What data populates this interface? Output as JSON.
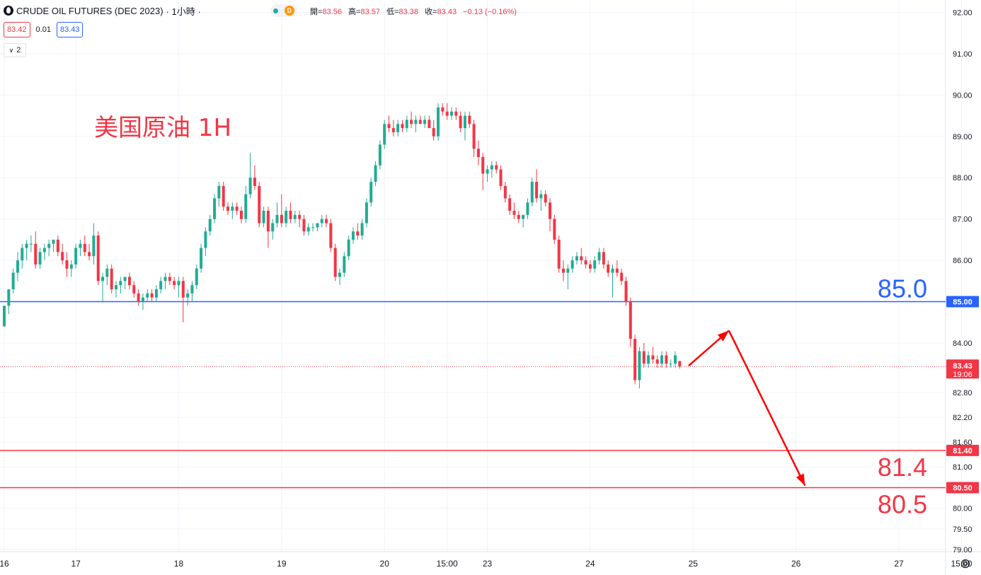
{
  "header": {
    "symbol": "CRUDE OIL FUTURES (DEC 2023)",
    "interval": "· 1小時 ·",
    "dot_icon": "status-dot-icon",
    "d_badge": "D",
    "open_label": "開=",
    "open": "83.56",
    "high_label": "高=",
    "high": "83.57",
    "low_label": "低=",
    "low": "83.38",
    "close_label": "收=",
    "close": "83.43",
    "change": "−0.13 (−0.16%)"
  },
  "quote": {
    "sell": "83.42",
    "spread": "0.01",
    "buy": "83.43"
  },
  "layers": {
    "icon": "chevron-down-icon",
    "count": "2"
  },
  "annotation": {
    "text": "美国原油 1H"
  },
  "colors": {
    "up": "#22ab94",
    "down": "#f23645",
    "blue_line": "#2962ff",
    "red_line": "#f23645",
    "grid": "#f0f3fa"
  },
  "chart_data": {
    "type": "candlestick",
    "title": "",
    "xlabel": "",
    "ylabel": "",
    "ylim": [
      78.95,
      92.3
    ],
    "grid": true,
    "y_ticks": [
      "92.00",
      "91.00",
      "90.00",
      "89.00",
      "88.00",
      "87.00",
      "86.00",
      "84.00",
      "82.80",
      "82.20",
      "81.60",
      "81.00",
      "80.00",
      "79.50",
      "79.00"
    ],
    "x_ticks": [
      {
        "label": "16",
        "t": 0
      },
      {
        "label": "17",
        "t": 16
      },
      {
        "label": "18",
        "t": 39
      },
      {
        "label": "19",
        "t": 62
      },
      {
        "label": "20",
        "t": 85
      },
      {
        "label": "15:00",
        "t": 99
      },
      {
        "label": "23",
        "t": 108
      },
      {
        "label": "24",
        "t": 131
      },
      {
        "label": "25",
        "t": 154
      },
      {
        "label": "26",
        "t": 177
      },
      {
        "label": "27",
        "t": 200
      },
      {
        "label": "15:00",
        "t": 214
      }
    ],
    "candles": [
      [
        84.4,
        84.9,
        84.4,
        84.9
      ],
      [
        84.9,
        85.3,
        84.7,
        85.3
      ],
      [
        85.3,
        85.8,
        85.2,
        85.7
      ],
      [
        85.7,
        86.2,
        85.5,
        86.0
      ],
      [
        86.0,
        86.4,
        85.8,
        86.3
      ],
      [
        86.3,
        86.5,
        86.0,
        86.4
      ],
      [
        86.4,
        86.6,
        86.2,
        86.4
      ],
      [
        86.4,
        86.7,
        85.8,
        85.9
      ],
      [
        85.9,
        86.3,
        85.8,
        86.2
      ],
      [
        86.2,
        86.4,
        86.0,
        86.3
      ],
      [
        86.3,
        86.5,
        86.1,
        86.4
      ],
      [
        86.4,
        86.5,
        86.2,
        86.5
      ],
      [
        86.5,
        86.6,
        86.1,
        86.2
      ],
      [
        86.2,
        86.4,
        85.9,
        86.0
      ],
      [
        86.0,
        86.2,
        85.6,
        85.8
      ],
      [
        85.8,
        86.0,
        85.6,
        85.9
      ],
      [
        85.9,
        86.4,
        85.8,
        86.3
      ],
      [
        86.3,
        86.5,
        86.1,
        86.4
      ],
      [
        86.4,
        86.6,
        86.1,
        86.2
      ],
      [
        86.2,
        86.4,
        86.0,
        86.1
      ],
      [
        86.1,
        86.9,
        85.9,
        86.6
      ],
      [
        86.6,
        86.7,
        85.4,
        85.5
      ],
      [
        85.5,
        85.7,
        85.0,
        85.6
      ],
      [
        85.6,
        85.9,
        85.4,
        85.8
      ],
      [
        85.8,
        85.9,
        85.2,
        85.3
      ],
      [
        85.3,
        85.5,
        85.1,
        85.4
      ],
      [
        85.4,
        85.6,
        85.2,
        85.5
      ],
      [
        85.5,
        85.6,
        85.3,
        85.6
      ],
      [
        85.6,
        85.7,
        85.3,
        85.4
      ],
      [
        85.4,
        85.5,
        85.1,
        85.2
      ],
      [
        85.2,
        85.3,
        84.9,
        85.0
      ],
      [
        85.0,
        85.2,
        84.8,
        85.1
      ],
      [
        85.1,
        85.3,
        85.0,
        85.2
      ],
      [
        85.2,
        85.3,
        85.0,
        85.1
      ],
      [
        85.1,
        85.4,
        85.0,
        85.3
      ],
      [
        85.3,
        85.6,
        85.2,
        85.5
      ],
      [
        85.5,
        85.7,
        85.3,
        85.6
      ],
      [
        85.6,
        85.7,
        85.4,
        85.5
      ],
      [
        85.5,
        85.6,
        85.3,
        85.4
      ],
      [
        85.4,
        85.6,
        85.1,
        85.5
      ],
      [
        85.5,
        85.6,
        84.5,
        85.1
      ],
      [
        85.1,
        85.3,
        84.9,
        85.2
      ],
      [
        85.2,
        85.5,
        85.0,
        85.4
      ],
      [
        85.4,
        85.9,
        85.3,
        85.8
      ],
      [
        85.8,
        86.4,
        85.7,
        86.3
      ],
      [
        86.3,
        86.8,
        86.1,
        86.7
      ],
      [
        86.7,
        87.1,
        86.6,
        87.0
      ],
      [
        87.0,
        87.6,
        86.9,
        87.5
      ],
      [
        87.5,
        87.9,
        87.3,
        87.8
      ],
      [
        87.8,
        87.9,
        87.2,
        87.3
      ],
      [
        87.3,
        87.4,
        87.1,
        87.2
      ],
      [
        87.2,
        87.4,
        87.0,
        87.3
      ],
      [
        87.3,
        87.4,
        87.1,
        87.2
      ],
      [
        87.2,
        87.3,
        86.9,
        87.0
      ],
      [
        87.0,
        87.8,
        86.9,
        87.6
      ],
      [
        87.6,
        88.6,
        87.5,
        88.0
      ],
      [
        88.0,
        88.3,
        87.7,
        87.8
      ],
      [
        87.8,
        87.9,
        86.8,
        86.9
      ],
      [
        86.9,
        87.3,
        86.8,
        87.2
      ],
      [
        87.2,
        87.3,
        86.3,
        86.7
      ],
      [
        86.7,
        87.0,
        86.5,
        86.9
      ],
      [
        86.9,
        87.4,
        86.8,
        87.1
      ],
      [
        87.1,
        87.6,
        86.8,
        86.9
      ],
      [
        86.9,
        87.3,
        86.8,
        87.2
      ],
      [
        87.2,
        87.4,
        86.9,
        87.0
      ],
      [
        87.0,
        87.2,
        86.9,
        87.1
      ],
      [
        87.1,
        87.2,
        86.8,
        87.0
      ],
      [
        87.0,
        87.1,
        86.6,
        86.7
      ],
      [
        86.7,
        86.9,
        86.6,
        86.8
      ],
      [
        86.8,
        86.9,
        86.7,
        86.8
      ],
      [
        86.8,
        86.9,
        86.7,
        86.9
      ],
      [
        86.9,
        87.1,
        86.8,
        87.0
      ],
      [
        87.0,
        87.1,
        86.8,
        86.9
      ],
      [
        86.9,
        87.0,
        86.2,
        86.3
      ],
      [
        86.3,
        86.4,
        85.5,
        85.6
      ],
      [
        85.6,
        85.8,
        85.4,
        85.7
      ],
      [
        85.7,
        86.2,
        85.6,
        86.1
      ],
      [
        86.1,
        86.6,
        86.0,
        86.5
      ],
      [
        86.5,
        86.8,
        86.4,
        86.7
      ],
      [
        86.7,
        86.9,
        86.5,
        86.6
      ],
      [
        86.6,
        87.0,
        86.5,
        86.9
      ],
      [
        86.9,
        87.5,
        86.8,
        87.4
      ],
      [
        87.4,
        88.0,
        87.3,
        87.9
      ],
      [
        87.9,
        88.4,
        87.8,
        88.3
      ],
      [
        88.3,
        88.9,
        88.2,
        88.8
      ],
      [
        88.8,
        89.4,
        88.7,
        89.3
      ],
      [
        89.3,
        89.5,
        89.1,
        89.2
      ],
      [
        89.2,
        89.4,
        89.0,
        89.1
      ],
      [
        89.1,
        89.4,
        89.0,
        89.3
      ],
      [
        89.3,
        89.4,
        89.1,
        89.2
      ],
      [
        89.2,
        89.5,
        89.1,
        89.4
      ],
      [
        89.4,
        89.6,
        89.2,
        89.3
      ],
      [
        89.3,
        89.5,
        89.1,
        89.4
      ],
      [
        89.4,
        89.5,
        89.3,
        89.3
      ],
      [
        89.3,
        89.5,
        89.2,
        89.4
      ],
      [
        89.4,
        89.5,
        89.2,
        89.2
      ],
      [
        89.2,
        89.4,
        88.9,
        89.0
      ],
      [
        89.0,
        89.8,
        88.9,
        89.7
      ],
      [
        89.7,
        89.8,
        89.5,
        89.6
      ],
      [
        89.6,
        89.8,
        89.4,
        89.5
      ],
      [
        89.5,
        89.7,
        89.4,
        89.6
      ],
      [
        89.6,
        89.7,
        89.4,
        89.5
      ],
      [
        89.5,
        89.6,
        89.1,
        89.2
      ],
      [
        89.2,
        89.6,
        88.9,
        89.5
      ],
      [
        89.5,
        89.6,
        89.2,
        89.3
      ],
      [
        89.3,
        89.4,
        88.5,
        88.7
      ],
      [
        88.7,
        88.9,
        88.3,
        88.5
      ],
      [
        88.5,
        88.6,
        87.7,
        88.1
      ],
      [
        88.1,
        88.3,
        87.9,
        88.2
      ],
      [
        88.2,
        88.4,
        88.0,
        88.3
      ],
      [
        88.3,
        88.4,
        88.1,
        88.2
      ],
      [
        88.2,
        88.3,
        87.7,
        87.8
      ],
      [
        87.8,
        87.9,
        87.4,
        87.5
      ],
      [
        87.5,
        87.6,
        87.1,
        87.2
      ],
      [
        87.2,
        87.4,
        87.0,
        87.1
      ],
      [
        87.1,
        87.2,
        86.9,
        87.0
      ],
      [
        87.0,
        87.1,
        86.8,
        87.1
      ],
      [
        87.1,
        87.5,
        87.0,
        87.4
      ],
      [
        87.4,
        88.0,
        87.3,
        87.9
      ],
      [
        87.9,
        88.2,
        87.4,
        87.5
      ],
      [
        87.5,
        87.7,
        87.2,
        87.6
      ],
      [
        87.6,
        87.7,
        87.3,
        87.4
      ],
      [
        87.4,
        87.5,
        86.7,
        87.0
      ],
      [
        87.0,
        87.1,
        86.4,
        86.5
      ],
      [
        86.5,
        86.6,
        85.7,
        85.8
      ],
      [
        85.8,
        86.0,
        85.5,
        85.7
      ],
      [
        85.7,
        85.9,
        85.3,
        85.8
      ],
      [
        85.8,
        86.1,
        85.7,
        86.0
      ],
      [
        86.0,
        86.2,
        85.9,
        86.1
      ],
      [
        86.1,
        86.3,
        85.9,
        86.0
      ],
      [
        86.0,
        86.1,
        85.8,
        85.9
      ],
      [
        85.9,
        86.0,
        85.7,
        85.8
      ],
      [
        85.8,
        86.1,
        85.7,
        86.0
      ],
      [
        86.0,
        86.3,
        85.9,
        86.2
      ],
      [
        86.2,
        86.3,
        85.8,
        85.9
      ],
      [
        85.9,
        86.0,
        85.6,
        85.7
      ],
      [
        85.7,
        85.9,
        85.1,
        85.8
      ],
      [
        85.8,
        86.0,
        85.6,
        85.7
      ],
      [
        85.7,
        85.8,
        85.4,
        85.5
      ],
      [
        85.5,
        85.6,
        84.9,
        85.0
      ],
      [
        85.0,
        85.1,
        83.9,
        84.1
      ],
      [
        84.1,
        84.2,
        83.0,
        83.1
      ],
      [
        83.1,
        83.9,
        82.9,
        83.8
      ],
      [
        83.8,
        84.0,
        83.4,
        83.5
      ],
      [
        83.5,
        83.8,
        83.4,
        83.7
      ],
      [
        83.7,
        83.9,
        83.5,
        83.6
      ],
      [
        83.6,
        83.7,
        83.4,
        83.5
      ],
      [
        83.5,
        83.8,
        83.4,
        83.7
      ],
      [
        83.7,
        83.8,
        83.4,
        83.5
      ],
      [
        83.5,
        83.6,
        83.4,
        83.5
      ],
      [
        83.5,
        83.8,
        83.4,
        83.7
      ],
      [
        83.56,
        83.57,
        83.38,
        83.43
      ]
    ],
    "current_price": {
      "price": 83.43,
      "label": "83.43",
      "time": "19:06"
    },
    "horizontal_lines": [
      {
        "price": 85.0,
        "label": "85.00",
        "text": "85.0",
        "color": "#2962ff"
      },
      {
        "price": 81.4,
        "label": "81.40",
        "text": "81.4",
        "color": "#f23645"
      },
      {
        "price": 80.5,
        "label": "80.50",
        "text": "80.5",
        "color": "#f23645"
      }
    ],
    "arrows": [
      {
        "from": [
          153,
          83.45
        ],
        "to": [
          162,
          84.3
        ]
      },
      {
        "from": [
          162,
          84.3
        ],
        "to": [
          179,
          80.55
        ]
      }
    ]
  }
}
